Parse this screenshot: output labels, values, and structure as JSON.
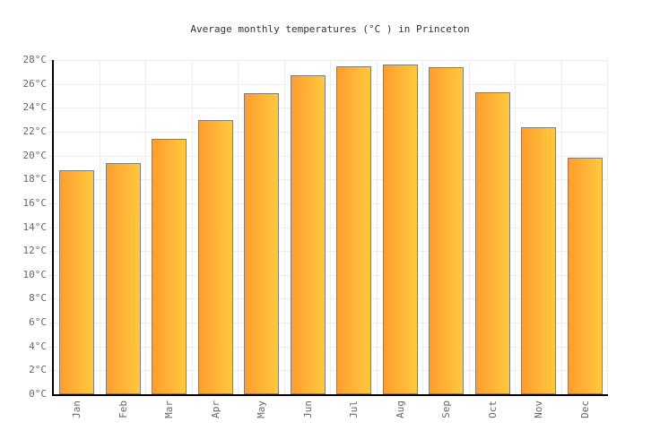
{
  "chart_data": {
    "type": "bar",
    "title": "Average monthly temperatures (°C ) in Princeton",
    "categories": [
      "Jan",
      "Feb",
      "Mar",
      "Apr",
      "May",
      "Jun",
      "Jul",
      "Aug",
      "Sep",
      "Oct",
      "Nov",
      "Dec"
    ],
    "values": [
      18.8,
      19.4,
      21.4,
      23.0,
      25.2,
      26.7,
      27.5,
      27.6,
      27.4,
      25.3,
      22.4,
      19.8
    ],
    "xlabel": "",
    "ylabel": "",
    "ylim": [
      0,
      28
    ],
    "ytick_step": 2,
    "ytick_suffix": "°C",
    "grid": true,
    "legend": false,
    "colors": {
      "background": "#ffffff",
      "bar_gradient_left": "#ff9d2f",
      "bar_gradient_right": "#ffc93d",
      "bar_border": "#7e7e7e",
      "gridline": "#ededed",
      "tick": "#e0e0e0",
      "axis": "#000000",
      "label": "#666666",
      "title": "#333333"
    }
  }
}
